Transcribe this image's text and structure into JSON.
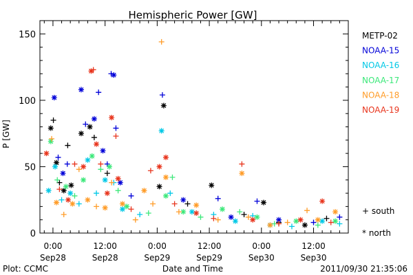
{
  "footer": {
    "plot_credit": "Plot: CCMC",
    "timestamp": "2011/09/30 21:35:06"
  },
  "chart_data": {
    "type": "scatter",
    "title": "Hemispheric Power [GW]",
    "xlabel": "Date and Time",
    "ylabel": "P [GW]",
    "ylim": [
      0,
      160
    ],
    "xlim_hours": [
      -3,
      68
    ],
    "yticks": [
      0,
      50,
      100,
      150
    ],
    "xticks": [
      {
        "hour": 0,
        "time": "0:00",
        "date": "Sep28"
      },
      {
        "hour": 12,
        "time": "12:00",
        "date": "Sep28"
      },
      {
        "hour": 24,
        "time": "0:00",
        "date": "Sep29"
      },
      {
        "hour": 36,
        "time": "12:00",
        "date": "Sep29"
      },
      {
        "hour": 48,
        "time": "0:00",
        "date": "Sep30"
      },
      {
        "hour": 60,
        "time": "12:00",
        "date": "Sep30"
      }
    ],
    "marker_legend": [
      {
        "symbol": "+",
        "label": "south"
      },
      {
        "symbol": "*",
        "label": "north"
      }
    ],
    "series": [
      {
        "name": "METP-02",
        "color": "#000000",
        "points": [
          {
            "x": -0.5,
            "y": 79,
            "m": "*"
          },
          {
            "x": 0.1,
            "y": 85,
            "m": "+"
          },
          {
            "x": 0.8,
            "y": 53,
            "m": "*"
          },
          {
            "x": 1.5,
            "y": 38,
            "m": "+"
          },
          {
            "x": 2.5,
            "y": 32,
            "m": "*"
          },
          {
            "x": 3.4,
            "y": 66,
            "m": "+"
          },
          {
            "x": 4.2,
            "y": 36,
            "m": "*"
          },
          {
            "x": 6.5,
            "y": 75,
            "m": "*"
          },
          {
            "x": 8.5,
            "y": 80,
            "m": "*"
          },
          {
            "x": 9.5,
            "y": 72,
            "m": "+"
          },
          {
            "x": 12.5,
            "y": 45,
            "m": "+"
          },
          {
            "x": 24.5,
            "y": 35,
            "m": "*"
          },
          {
            "x": 25.5,
            "y": 96,
            "m": "*"
          },
          {
            "x": 31,
            "y": 22,
            "m": "+"
          },
          {
            "x": 36.5,
            "y": 36,
            "m": "*"
          },
          {
            "x": 44,
            "y": 14,
            "m": "+"
          },
          {
            "x": 48.5,
            "y": 23,
            "m": "*"
          },
          {
            "x": 52,
            "y": 8,
            "m": "+"
          },
          {
            "x": 58,
            "y": 6,
            "m": "*"
          },
          {
            "x": 63,
            "y": 11,
            "m": "+"
          }
        ]
      },
      {
        "name": "NOAA-15",
        "color": "#0000d8",
        "points": [
          {
            "x": 0.3,
            "y": 102,
            "m": "*"
          },
          {
            "x": 1.2,
            "y": 57,
            "m": "+"
          },
          {
            "x": 2.3,
            "y": 45,
            "m": "*"
          },
          {
            "x": 3.3,
            "y": 52,
            "m": "+"
          },
          {
            "x": 6.5,
            "y": 108,
            "m": "*"
          },
          {
            "x": 7.5,
            "y": 82,
            "m": "+"
          },
          {
            "x": 9.5,
            "y": 86,
            "m": "*"
          },
          {
            "x": 10.5,
            "y": 106,
            "m": "+"
          },
          {
            "x": 11.5,
            "y": 62,
            "m": "*"
          },
          {
            "x": 12.5,
            "y": 52,
            "m": "+"
          },
          {
            "x": 13.4,
            "y": 120,
            "m": "+"
          },
          {
            "x": 14,
            "y": 119,
            "m": "*"
          },
          {
            "x": 14.5,
            "y": 79,
            "m": "+"
          },
          {
            "x": 15.5,
            "y": 38,
            "m": "*"
          },
          {
            "x": 18,
            "y": 28,
            "m": "+"
          },
          {
            "x": 25.2,
            "y": 104,
            "m": "+"
          },
          {
            "x": 30,
            "y": 25,
            "m": "*"
          },
          {
            "x": 38,
            "y": 26,
            "m": "+"
          },
          {
            "x": 41,
            "y": 12,
            "m": "*"
          },
          {
            "x": 47,
            "y": 24,
            "m": "+"
          },
          {
            "x": 52,
            "y": 10,
            "m": "*"
          },
          {
            "x": 60,
            "y": 8,
            "m": "+"
          },
          {
            "x": 66,
            "y": 12,
            "m": "+"
          }
        ]
      },
      {
        "name": "NOAA-16",
        "color": "#00c8e6",
        "points": [
          {
            "x": -1,
            "y": 32,
            "m": "*"
          },
          {
            "x": 0.5,
            "y": 50,
            "m": "*"
          },
          {
            "x": 2,
            "y": 25,
            "m": "+"
          },
          {
            "x": 4,
            "y": 30,
            "m": "*"
          },
          {
            "x": 6,
            "y": 22,
            "m": "+"
          },
          {
            "x": 8,
            "y": 55,
            "m": "*"
          },
          {
            "x": 10,
            "y": 30,
            "m": "+"
          },
          {
            "x": 12,
            "y": 40,
            "m": "*"
          },
          {
            "x": 14,
            "y": 38,
            "m": "+"
          },
          {
            "x": 16,
            "y": 18,
            "m": "*"
          },
          {
            "x": 20,
            "y": 14,
            "m": "+"
          },
          {
            "x": 25,
            "y": 77,
            "m": "*"
          },
          {
            "x": 27,
            "y": 30,
            "m": "+"
          },
          {
            "x": 32,
            "y": 16,
            "m": "*"
          },
          {
            "x": 37,
            "y": 14,
            "m": "+"
          },
          {
            "x": 42,
            "y": 9,
            "m": "*"
          },
          {
            "x": 46,
            "y": 13,
            "m": "+"
          },
          {
            "x": 50,
            "y": 6,
            "m": "*"
          },
          {
            "x": 55,
            "y": 5,
            "m": "+"
          },
          {
            "x": 62,
            "y": 9,
            "m": "*"
          },
          {
            "x": 66,
            "y": 7,
            "m": "+"
          }
        ]
      },
      {
        "name": "NOAA-17",
        "color": "#3ce87a",
        "points": [
          {
            "x": -0.5,
            "y": 69,
            "m": "*"
          },
          {
            "x": 1,
            "y": 40,
            "m": "+"
          },
          {
            "x": 3,
            "y": 35,
            "m": "*"
          },
          {
            "x": 5,
            "y": 28,
            "m": "+"
          },
          {
            "x": 7,
            "y": 40,
            "m": "*"
          },
          {
            "x": 9,
            "y": 58,
            "m": "*"
          },
          {
            "x": 11,
            "y": 48,
            "m": "+"
          },
          {
            "x": 13,
            "y": 50,
            "m": "*"
          },
          {
            "x": 15,
            "y": 32,
            "m": "+"
          },
          {
            "x": 17,
            "y": 20,
            "m": "*"
          },
          {
            "x": 22,
            "y": 15,
            "m": "+"
          },
          {
            "x": 26,
            "y": 28,
            "m": "*"
          },
          {
            "x": 27.5,
            "y": 42,
            "m": "+"
          },
          {
            "x": 30,
            "y": 16,
            "m": "*"
          },
          {
            "x": 34,
            "y": 12,
            "m": "+"
          },
          {
            "x": 39,
            "y": 18,
            "m": "*"
          },
          {
            "x": 43,
            "y": 16,
            "m": "+"
          },
          {
            "x": 47,
            "y": 12,
            "m": "*"
          },
          {
            "x": 51,
            "y": 7,
            "m": "+"
          },
          {
            "x": 56,
            "y": 9,
            "m": "*"
          },
          {
            "x": 61,
            "y": 6,
            "m": "+"
          },
          {
            "x": 65,
            "y": 9,
            "m": "*"
          }
        ]
      },
      {
        "name": "NOAA-18",
        "color": "#ff9c28",
        "points": [
          {
            "x": -0.3,
            "y": 71,
            "m": "+"
          },
          {
            "x": 0.8,
            "y": 23,
            "m": "*"
          },
          {
            "x": 2.5,
            "y": 14,
            "m": "+"
          },
          {
            "x": 4.5,
            "y": 22,
            "m": "*"
          },
          {
            "x": 6,
            "y": 48,
            "m": "+"
          },
          {
            "x": 8,
            "y": 25,
            "m": "*"
          },
          {
            "x": 10,
            "y": 20,
            "m": "+"
          },
          {
            "x": 12,
            "y": 19,
            "m": "*"
          },
          {
            "x": 13.5,
            "y": 38,
            "m": "+"
          },
          {
            "x": 16,
            "y": 22,
            "m": "*"
          },
          {
            "x": 19,
            "y": 10,
            "m": "+"
          },
          {
            "x": 21,
            "y": 32,
            "m": "*"
          },
          {
            "x": 23,
            "y": 22,
            "m": "+"
          },
          {
            "x": 25,
            "y": 144,
            "m": "+"
          },
          {
            "x": 26,
            "y": 42,
            "m": "*"
          },
          {
            "x": 29,
            "y": 16,
            "m": "+"
          },
          {
            "x": 33,
            "y": 21,
            "m": "*"
          },
          {
            "x": 38,
            "y": 10,
            "m": "+"
          },
          {
            "x": 43.5,
            "y": 45,
            "m": "*"
          },
          {
            "x": 45,
            "y": 12,
            "m": "+"
          },
          {
            "x": 50,
            "y": 6,
            "m": "*"
          },
          {
            "x": 54,
            "y": 8,
            "m": "+"
          },
          {
            "x": 58.5,
            "y": 17,
            "m": "+"
          },
          {
            "x": 61,
            "y": 10,
            "m": "*"
          },
          {
            "x": 65,
            "y": 16,
            "m": "*"
          }
        ]
      },
      {
        "name": "NOAA-19",
        "color": "#e8341c",
        "points": [
          {
            "x": -1.5,
            "y": 60,
            "m": "*"
          },
          {
            "x": 1.5,
            "y": 33,
            "m": "+"
          },
          {
            "x": 3.5,
            "y": 25,
            "m": "*"
          },
          {
            "x": 5,
            "y": 52,
            "m": "+"
          },
          {
            "x": 7,
            "y": 50,
            "m": "*"
          },
          {
            "x": 8.8,
            "y": 122,
            "m": "*"
          },
          {
            "x": 9.3,
            "y": 123,
            "m": "+"
          },
          {
            "x": 10,
            "y": 67,
            "m": "*"
          },
          {
            "x": 11,
            "y": 52,
            "m": "+"
          },
          {
            "x": 12.5,
            "y": 30,
            "m": "*"
          },
          {
            "x": 13.5,
            "y": 87,
            "m": "*"
          },
          {
            "x": 14.5,
            "y": 73,
            "m": "+"
          },
          {
            "x": 15,
            "y": 41,
            "m": "*"
          },
          {
            "x": 18,
            "y": 18,
            "m": "+"
          },
          {
            "x": 22.5,
            "y": 47,
            "m": "+"
          },
          {
            "x": 24.5,
            "y": 50,
            "m": "*"
          },
          {
            "x": 26,
            "y": 57,
            "m": "*"
          },
          {
            "x": 28,
            "y": 22,
            "m": "+"
          },
          {
            "x": 33,
            "y": 15,
            "m": "*"
          },
          {
            "x": 37,
            "y": 11,
            "m": "+"
          },
          {
            "x": 43.5,
            "y": 52,
            "m": "+"
          },
          {
            "x": 46,
            "y": 10,
            "m": "*"
          },
          {
            "x": 52,
            "y": 7,
            "m": "+"
          },
          {
            "x": 57,
            "y": 10,
            "m": "*"
          },
          {
            "x": 62,
            "y": 24,
            "m": "*"
          },
          {
            "x": 64,
            "y": 8,
            "m": "+"
          }
        ]
      }
    ]
  }
}
